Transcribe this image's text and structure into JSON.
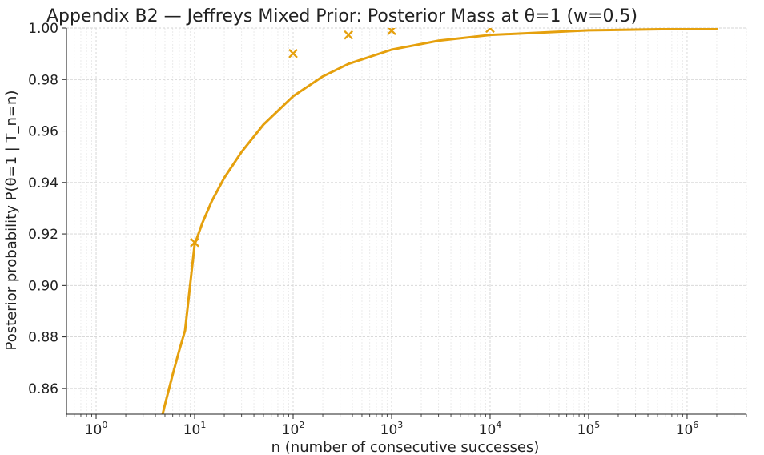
{
  "chart_data": {
    "type": "line",
    "title": "Appendix B2 — Jeffreys Mixed Prior: Posterior Mass at θ=1 (w=0.5)",
    "xlabel": "n (number of consecutive successes)",
    "ylabel": "Posterior probability  P(θ=1 | T_n=n)",
    "xscale": "log",
    "xlim": [
      0.5,
      4000000
    ],
    "ylim": [
      0.85,
      1.0
    ],
    "x_ticks": [
      {
        "value": 1,
        "base": "10",
        "exp": "0"
      },
      {
        "value": 10,
        "base": "10",
        "exp": "1"
      },
      {
        "value": 100,
        "base": "10",
        "exp": "2"
      },
      {
        "value": 1000,
        "base": "10",
        "exp": "3"
      },
      {
        "value": 10000,
        "base": "10",
        "exp": "4"
      },
      {
        "value": 100000,
        "base": "10",
        "exp": "5"
      },
      {
        "value": 1000000,
        "base": "10",
        "exp": "6"
      }
    ],
    "y_ticks": [
      {
        "value": 0.86,
        "label": "0.86"
      },
      {
        "value": 0.88,
        "label": "0.88"
      },
      {
        "value": 0.9,
        "label": "0.90"
      },
      {
        "value": 0.92,
        "label": "0.92"
      },
      {
        "value": 0.94,
        "label": "0.94"
      },
      {
        "value": 0.96,
        "label": "0.96"
      },
      {
        "value": 0.98,
        "label": "0.98"
      },
      {
        "value": 1.0,
        "label": "1.00"
      }
    ],
    "grid": true,
    "series": [
      {
        "kind": "line",
        "color": "#e5a00d",
        "x": [
          4.7,
          5,
          6,
          7,
          8,
          10,
          12,
          15,
          20,
          30,
          50,
          100,
          200,
          365,
          1000,
          3000,
          10000,
          100000,
          1000000,
          2000000
        ],
        "y": [
          0.8495,
          0.8537,
          0.8655,
          0.8749,
          0.8825,
          0.9159,
          0.9243,
          0.9329,
          0.9418,
          0.9519,
          0.9625,
          0.9735,
          0.9812,
          0.9861,
          0.9916,
          0.9951,
          0.9973,
          0.9991,
          0.9997,
          0.9998
        ]
      },
      {
        "kind": "markers",
        "marker": "x",
        "color": "#e5a00d",
        "x": [
          10,
          100,
          365,
          1000,
          10000
        ],
        "y": [
          0.9167,
          0.9901,
          0.9973,
          0.999,
          0.9999
        ]
      }
    ]
  }
}
